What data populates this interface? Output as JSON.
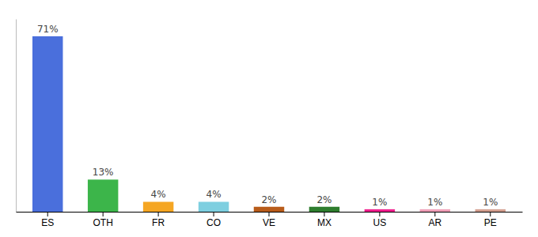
{
  "chart_data": {
    "type": "bar",
    "categories": [
      "ES",
      "OTH",
      "FR",
      "CO",
      "VE",
      "MX",
      "US",
      "AR",
      "PE"
    ],
    "values": [
      71,
      13,
      4,
      4,
      2,
      2,
      1,
      1,
      1
    ],
    "value_labels": [
      "71%",
      "13%",
      "4%",
      "4%",
      "2%",
      "2%",
      "1%",
      "1%",
      "1%"
    ],
    "colors": [
      "#4a6fdc",
      "#3cb54a",
      "#f5a623",
      "#7ecfe0",
      "#b85c1a",
      "#2e7d2e",
      "#f01e8c",
      "#f0a0b8",
      "#d4a090"
    ],
    "ylim": [
      0,
      78
    ],
    "data_labels": true,
    "tick_labels": "x",
    "grid": false
  }
}
